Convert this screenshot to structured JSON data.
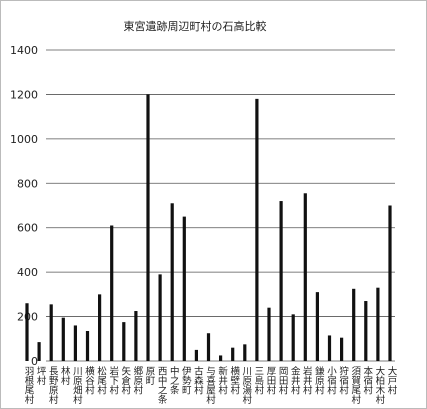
{
  "chart_data": {
    "type": "bar",
    "title": "東宮遺跡周辺町村の石高比較",
    "categories": [
      "羽根尾村",
      "坪村",
      "長野原村",
      "林村",
      "川原畑村",
      "横谷村",
      "松尾村",
      "岩下村",
      "矢倉村",
      "郷原村",
      "原町",
      "西中之条",
      "中之条",
      "伊勢町",
      "古森村",
      "与喜屋村",
      "新井村",
      "横壁村",
      "川原湯村",
      "三島村",
      "厚田村",
      "岡田村",
      "金井村",
      "岩井村",
      "鎌原村",
      "小宿村",
      "狩宿村",
      "須賀尾村",
      "本宿村",
      "大柏木村",
      "大戸村"
    ],
    "values": [
      260,
      85,
      255,
      195,
      160,
      135,
      300,
      610,
      175,
      225,
      1200,
      390,
      710,
      650,
      50,
      125,
      25,
      60,
      75,
      1180,
      240,
      720,
      210,
      755,
      310,
      115,
      105,
      325,
      270,
      330,
      700
    ],
    "color": "#111111",
    "ylim": [
      0,
      1400
    ],
    "yticks": [
      0,
      200,
      400,
      600,
      800,
      1000,
      1200,
      1400
    ],
    "grid": true
  }
}
